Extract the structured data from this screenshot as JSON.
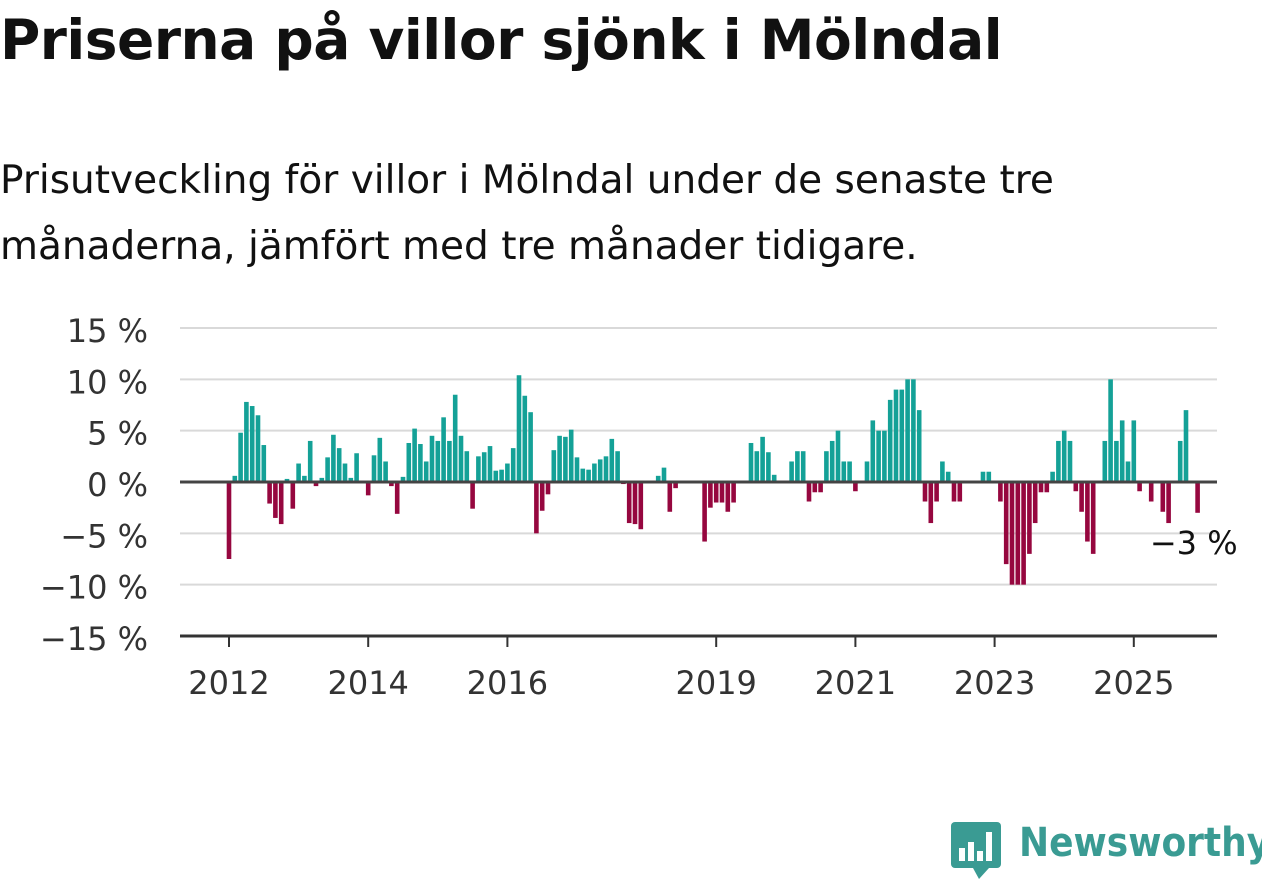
{
  "title": "Priserna på villor sjönk i Mölndal",
  "subtitle": "Prisutveckling för villor i Mölndal under de senaste tre månaderna, jämfört med tre månader tidigare.",
  "brand": {
    "name": "Newsworthy",
    "icon": "newsworthy-logo-icon",
    "color": "#3a9b93"
  },
  "chart_data": {
    "type": "bar",
    "title": "",
    "xlabel": "",
    "ylabel": "",
    "ylim": [
      -15,
      15
    ],
    "yticks": [
      15,
      10,
      5,
      0,
      -5,
      -10,
      -15
    ],
    "ytick_labels": [
      "15 %",
      "10 %",
      "5 %",
      "0 %",
      "−5 %",
      "−10 %",
      "−15 %"
    ],
    "xtick_labels": [
      "2012",
      "2014",
      "2016",
      "2019",
      "2021",
      "2023",
      "2025"
    ],
    "grid": true,
    "colors": {
      "positive": "#14a197",
      "negative": "#96073f",
      "grid": "#d9d9d9",
      "axis": "#333333"
    },
    "annotation": {
      "text": "−3 %",
      "value": -3
    },
    "series": [
      {
        "values": [
          -7.5,
          0.6,
          4.8,
          7.8,
          7.4,
          6.5,
          3.6,
          -2.1,
          -3.5,
          -4.1,
          0.3,
          -2.6,
          1.8,
          0.6,
          4.0,
          -0.4,
          0.4,
          2.4,
          4.6,
          3.3,
          1.8,
          0.4,
          2.8,
          0.0,
          -1.3,
          2.6,
          4.3,
          2.0,
          -0.4,
          -3.1,
          0.5,
          3.8,
          5.2,
          3.7,
          2.0,
          4.5,
          4.0,
          6.3,
          4.0,
          8.5,
          4.5,
          3.0,
          -2.6,
          2.5,
          2.9,
          3.5,
          1.1,
          1.2,
          1.8,
          3.3,
          10.4,
          8.4,
          6.8,
          -5.0,
          -2.8,
          -1.2,
          3.1,
          4.5,
          4.4,
          5.1,
          2.4,
          1.3,
          1.2,
          1.8,
          2.2,
          2.5,
          4.2,
          3.0,
          -0.2,
          -4.0,
          -4.1,
          -4.6,
          0.0,
          0.0,
          0.6,
          1.4,
          -2.9,
          -0.6,
          0.0,
          0.0,
          0.0,
          0.0,
          -5.8,
          -2.5,
          -2.0,
          -2.0,
          -2.9,
          -2.0,
          0.0,
          0.0,
          3.8,
          3.0,
          4.4,
          2.9,
          0.7,
          0.0,
          0.0,
          2.0,
          3.0,
          3.0,
          -1.9,
          -1.0,
          -1.0,
          3.0,
          4.0,
          5.0,
          2.0,
          2.0,
          -0.9,
          0.0,
          2.0,
          6.0,
          5.0,
          5.0,
          8.0,
          9.0,
          9.0,
          10.0,
          10.0,
          7.0,
          -1.9,
          -4.0,
          -1.9,
          2.0,
          1.0,
          -1.9,
          -1.9,
          0.0,
          0.0,
          0.0,
          1.0,
          1.0,
          0.0,
          -1.9,
          -8.0,
          -10.0,
          -10.0,
          -10.0,
          -7.0,
          -4.0,
          -1.0,
          -1.0,
          1.0,
          4.0,
          5.0,
          4.0,
          -0.9,
          -2.9,
          -5.8,
          -7.0,
          0.0,
          4.0,
          10.0,
          4.0,
          6.0,
          2.0,
          6.0,
          -0.9,
          0.0,
          -1.9,
          0.0,
          -2.9,
          -4.0,
          0.0,
          4.0,
          7.0,
          0.0,
          -3.0
        ]
      }
    ]
  }
}
